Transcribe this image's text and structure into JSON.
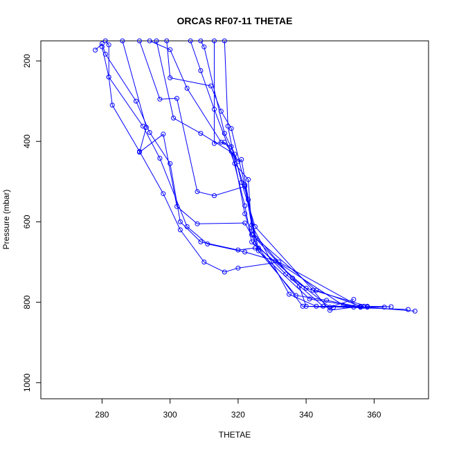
{
  "chart_data": {
    "type": "line",
    "title": "ORCAS RF07-11 THETAE",
    "xlabel": "THETAE",
    "ylabel": "Pressure (mbar)",
    "xlim": [
      262,
      376
    ],
    "ylim": [
      1040,
      150
    ],
    "y_reversed": true,
    "x_ticks": [
      280,
      300,
      320,
      340,
      360
    ],
    "y_ticks": [
      200,
      400,
      600,
      800,
      1000
    ],
    "grid": false,
    "legend": "none",
    "color": "#0000ff",
    "series": [
      {
        "points": [
          [
            281,
            150
          ],
          [
            282,
            160
          ],
          [
            282,
            240
          ],
          [
            283,
            310
          ],
          [
            291,
            425
          ],
          [
            298,
            530
          ],
          [
            303,
            620
          ],
          [
            310,
            700
          ],
          [
            316,
            725
          ],
          [
            320,
            715
          ],
          [
            332,
            700
          ],
          [
            356,
            812
          ],
          [
            363,
            812
          ]
        ]
      },
      {
        "points": [
          [
            278,
            173
          ],
          [
            280,
            157
          ],
          [
            281,
            183
          ],
          [
            290,
            300
          ],
          [
            294,
            378
          ],
          [
            300,
            455
          ],
          [
            303,
            600
          ],
          [
            309,
            650
          ],
          [
            320,
            670
          ],
          [
            325,
            665
          ],
          [
            341,
            792
          ],
          [
            356,
            812
          ]
        ]
      },
      {
        "points": [
          [
            280,
            165
          ],
          [
            282,
            240
          ],
          [
            292,
            362
          ],
          [
            297,
            442
          ],
          [
            305,
            612
          ],
          [
            311,
            655
          ],
          [
            322,
            675
          ],
          [
            331,
            697
          ],
          [
            351,
            808
          ],
          [
            372,
            822
          ]
        ]
      },
      {
        "points": [
          [
            286,
            150
          ],
          [
            293,
            365
          ],
          [
            291,
            427
          ],
          [
            298,
            382
          ],
          [
            302,
            562
          ],
          [
            308,
            605
          ],
          [
            322,
            603
          ],
          [
            326,
            665
          ],
          [
            339,
            810
          ],
          [
            358,
            812
          ]
        ]
      },
      {
        "points": [
          [
            291,
            150
          ],
          [
            297,
            295
          ],
          [
            302,
            293
          ],
          [
            308,
            525
          ],
          [
            313,
            535
          ],
          [
            322,
            512
          ],
          [
            324,
            608
          ],
          [
            335,
            780
          ],
          [
            343,
            810
          ],
          [
            370,
            818
          ]
        ]
      },
      {
        "points": [
          [
            294,
            150
          ],
          [
            300,
            172
          ],
          [
            305,
            268
          ],
          [
            315,
            402
          ],
          [
            318,
            413
          ],
          [
            323,
            545
          ],
          [
            325,
            653
          ],
          [
            334,
            730
          ],
          [
            345,
            810
          ],
          [
            357,
            810
          ]
        ]
      },
      {
        "points": [
          [
            296,
            150
          ],
          [
            301,
            342
          ],
          [
            309,
            380
          ],
          [
            319,
            432
          ],
          [
            321,
            502
          ],
          [
            325,
            612
          ],
          [
            342,
            770
          ],
          [
            347,
            820
          ],
          [
            354,
            812
          ]
        ]
      },
      {
        "points": [
          [
            299,
            150
          ],
          [
            300,
            242
          ],
          [
            312,
            262
          ],
          [
            315,
            325
          ],
          [
            318,
            368
          ],
          [
            322,
            508
          ],
          [
            326,
            672
          ],
          [
            337,
            783
          ],
          [
            346,
            795
          ],
          [
            356,
            812
          ]
        ]
      },
      {
        "points": [
          [
            306,
            150
          ],
          [
            309,
            224
          ],
          [
            313,
            320
          ],
          [
            319,
            455
          ],
          [
            323,
            495
          ],
          [
            324,
            623
          ],
          [
            338,
            760
          ],
          [
            340,
            810
          ],
          [
            348,
            813
          ]
        ]
      },
      {
        "points": [
          [
            309,
            150
          ],
          [
            310,
            165
          ],
          [
            316,
            380
          ],
          [
            320,
            450
          ],
          [
            321,
            445
          ],
          [
            325,
            640
          ],
          [
            336,
            740
          ],
          [
            347,
            812
          ],
          [
            354,
            793
          ]
        ]
      },
      {
        "points": [
          [
            313,
            150
          ],
          [
            313,
            405
          ],
          [
            316,
            402
          ],
          [
            318,
            425
          ],
          [
            322,
            560
          ],
          [
            324,
            650
          ],
          [
            340,
            765
          ],
          [
            358,
            810
          ],
          [
            365,
            811
          ]
        ]
      },
      {
        "points": [
          [
            316,
            150
          ],
          [
            317,
            362
          ],
          [
            322,
            580
          ],
          [
            324,
            632
          ],
          [
            343,
            770
          ],
          [
            356,
            810
          ]
        ]
      }
    ]
  }
}
